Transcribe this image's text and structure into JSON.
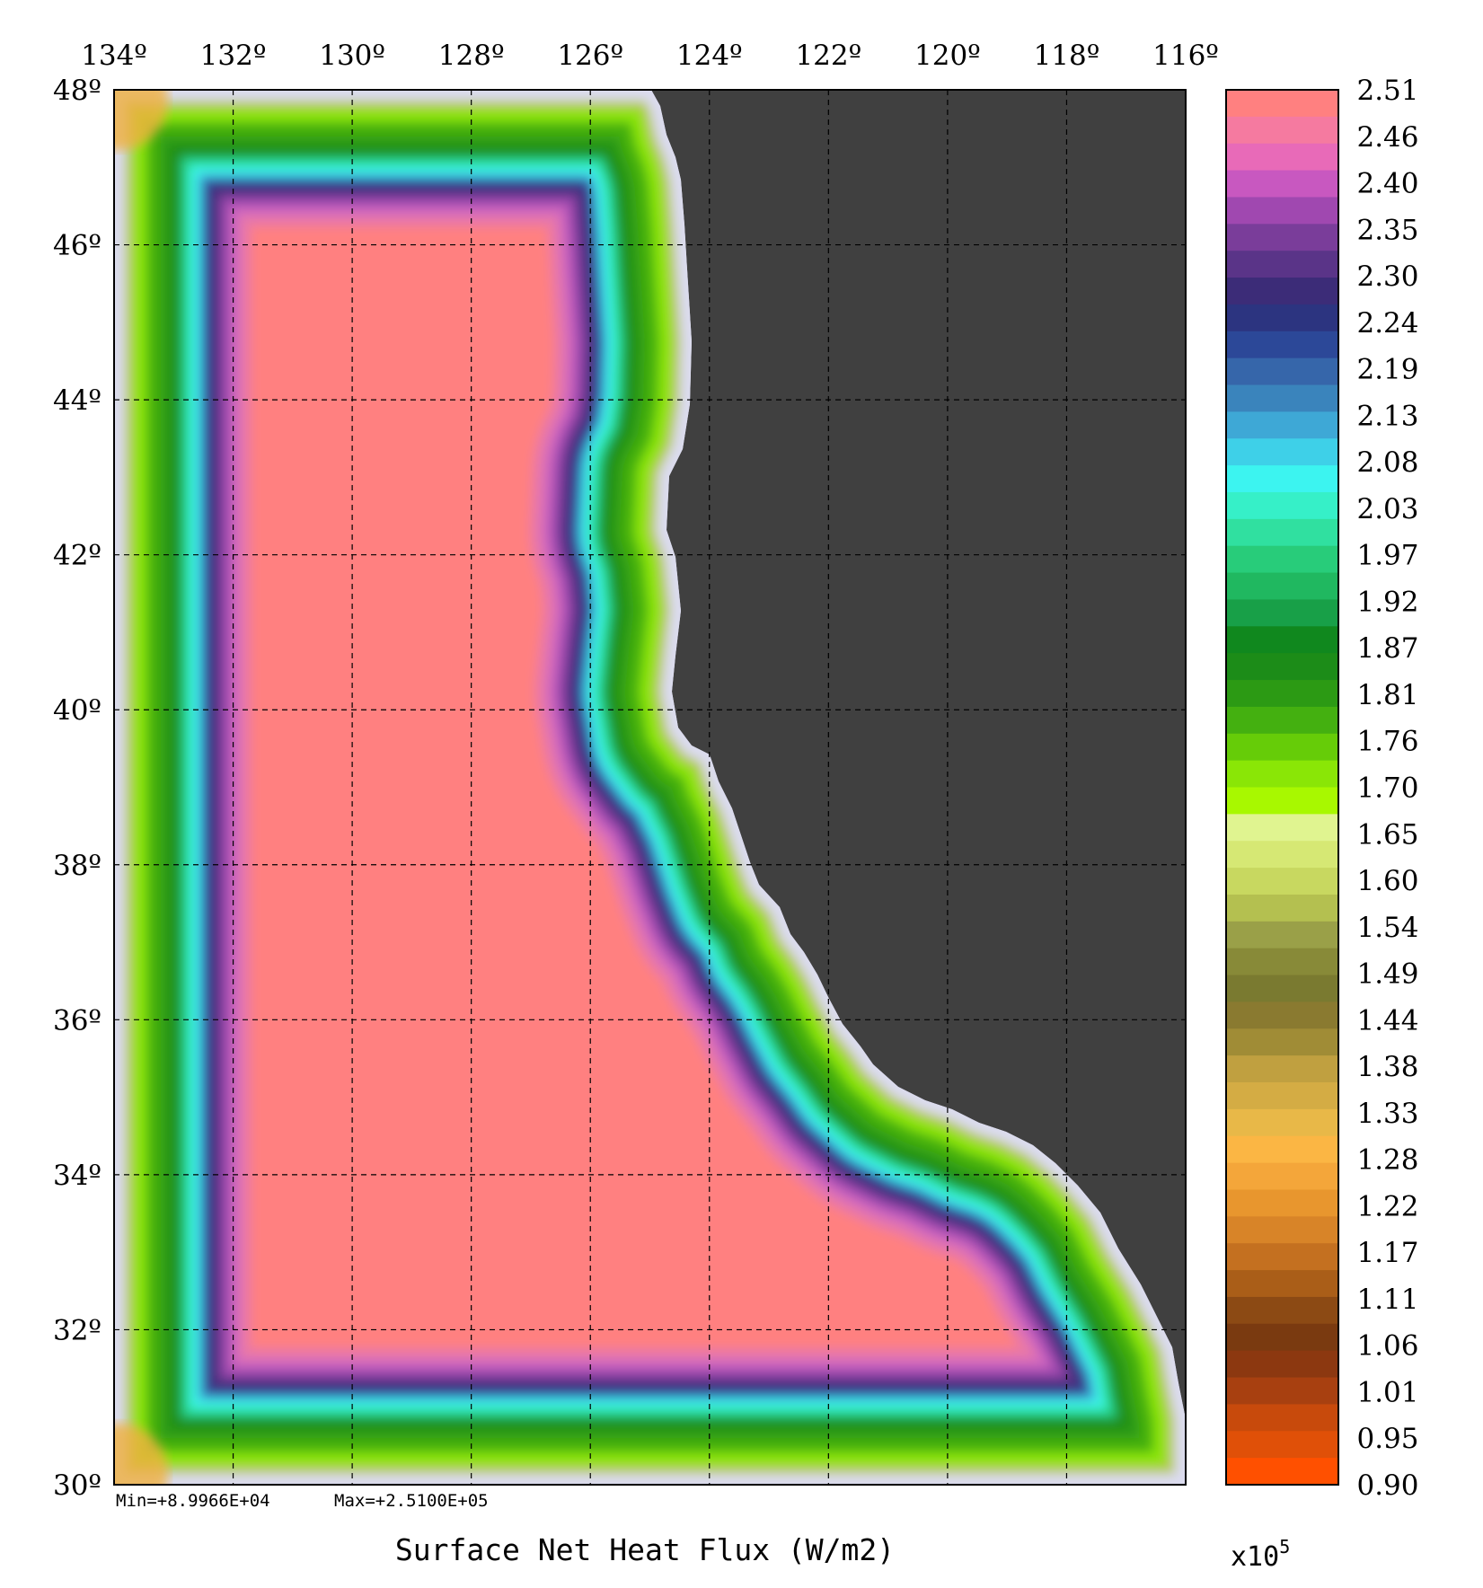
{
  "map": {
    "title": "Surface Net Heat Flux (W/m2)",
    "stats": {
      "min": "Min=+8.9966E+04",
      "max": "Max=+2.5100E+05"
    },
    "lon_labels": [
      "134º",
      "132º",
      "130º",
      "128º",
      "126º",
      "124º",
      "122º",
      "120º",
      "118º",
      "116º"
    ],
    "lat_labels": [
      "48º",
      "46º",
      "44º",
      "42º",
      "40º",
      "38º",
      "36º",
      "34º",
      "32º",
      "30º"
    ],
    "lon_range": [
      134,
      116
    ],
    "lat_range": [
      30,
      48
    ],
    "gridlines": true,
    "colors": {
      "land": "#404040",
      "coast": "#dcdcf0",
      "interior": "#ff8080"
    }
  },
  "colorbar": {
    "ticks": [
      "2.51",
      "2.46",
      "2.40",
      "2.35",
      "2.30",
      "2.24",
      "2.19",
      "2.13",
      "2.08",
      "2.03",
      "1.97",
      "1.92",
      "1.87",
      "1.81",
      "1.76",
      "1.70",
      "1.65",
      "1.60",
      "1.54",
      "1.49",
      "1.44",
      "1.38",
      "1.33",
      "1.28",
      "1.22",
      "1.17",
      "1.11",
      "1.06",
      "1.01",
      "0.95",
      "0.90"
    ],
    "scale_base": "x10",
    "scale_exp": "5",
    "colors": [
      "#ff8080",
      "#f57aa0",
      "#e86ab8",
      "#c858c0",
      "#a048b0",
      "#7a3d9a",
      "#5a3488",
      "#3c2c78",
      "#2c3480",
      "#2c4898",
      "#3666aa",
      "#3a84bc",
      "#3ea8d6",
      "#3ed0e8",
      "#3cf4f0",
      "#36f0c8",
      "#30e0a0",
      "#28cc7a",
      "#20b860",
      "#18a048",
      "#10881e",
      "#1c8c18",
      "#2c9a14",
      "#44b010",
      "#66cc08",
      "#8ae606",
      "#a8f800",
      "#e0f490",
      "#d6e874",
      "#c8d860",
      "#b4c050",
      "#9aa048",
      "#888a38",
      "#7a7a30",
      "#8a7a30",
      "#a08c36",
      "#c0a040",
      "#d4ac44",
      "#e8b848",
      "#fbb644",
      "#f4a63a",
      "#e8962e",
      "#d88428",
      "#c47020",
      "#aa5e18",
      "#8c4a14",
      "#7a3a10",
      "#8c3810",
      "#a84010",
      "#c84a0c",
      "#e05008",
      "#ff5000"
    ]
  }
}
